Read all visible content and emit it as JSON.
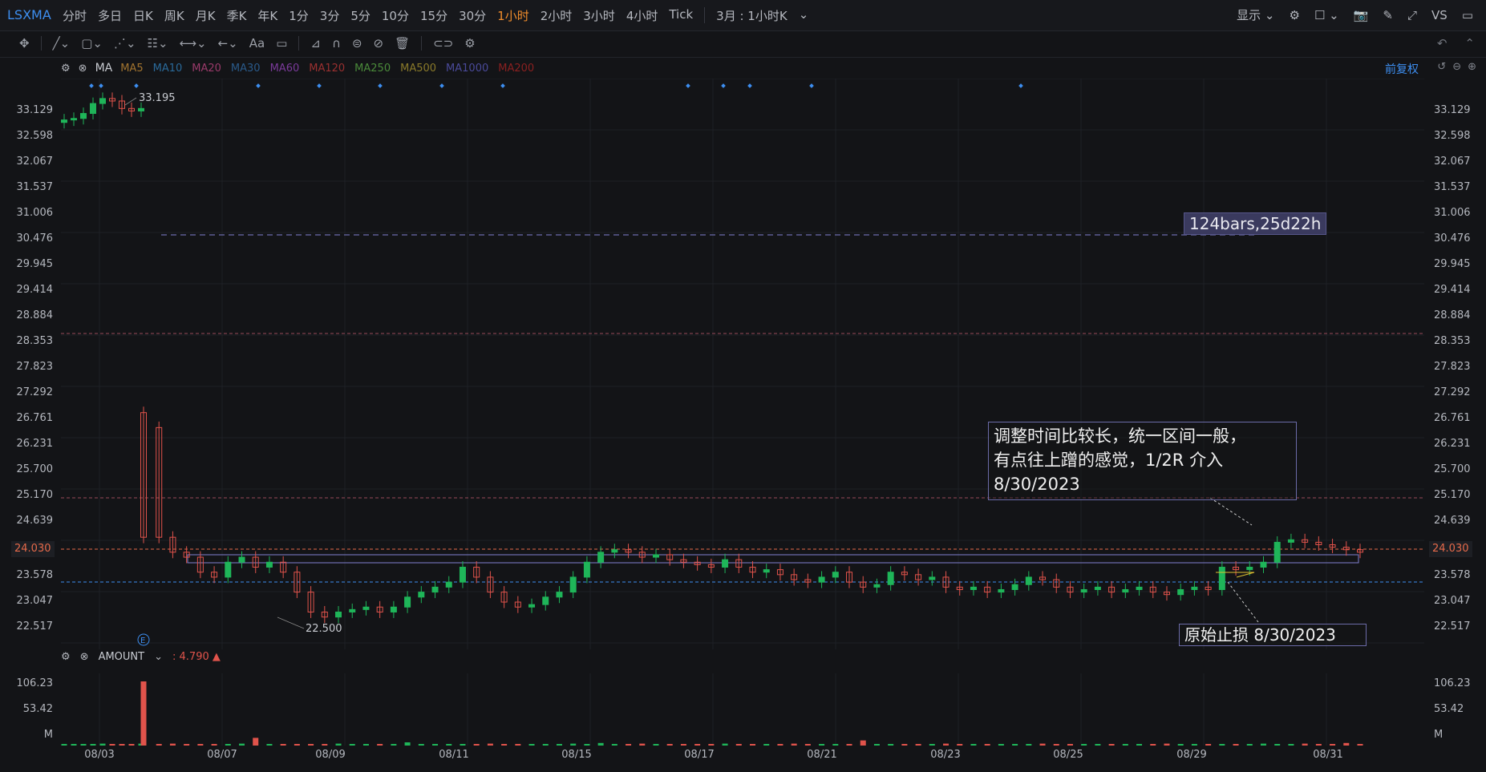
{
  "symbol": "LSXMA",
  "periods": [
    "分时",
    "多日",
    "日K",
    "周K",
    "月K",
    "季K",
    "年K",
    "1分",
    "3分",
    "5分",
    "10分",
    "15分",
    "30分",
    "1小时",
    "2小时",
    "3小时",
    "4小时",
    "Tick"
  ],
  "active_period": "1小时",
  "breadcrumb": "3月 : 1小时K",
  "display_label": "显示",
  "vs_label": "VS",
  "ma": {
    "label": "MA",
    "items": [
      {
        "name": "MA5",
        "color": "#a2742f"
      },
      {
        "name": "MA10",
        "color": "#2a6a9a"
      },
      {
        "name": "MA20",
        "color": "#9a3a6a"
      },
      {
        "name": "MA30",
        "color": "#2a5a8a"
      },
      {
        "name": "MA60",
        "color": "#7a3a9a"
      },
      {
        "name": "MA120",
        "color": "#9a3030"
      },
      {
        "name": "MA250",
        "color": "#4a8a3a"
      },
      {
        "name": "MA500",
        "color": "#8a7a2a"
      },
      {
        "name": "MA1000",
        "color": "#4a4a9a"
      },
      {
        "name": "MA200",
        "color": "#8a2020"
      }
    ]
  },
  "restore_label": "前复权",
  "price_labels": [
    "33.129",
    "32.598",
    "32.067",
    "31.537",
    "31.006",
    "30.476",
    "29.945",
    "29.414",
    "28.884",
    "28.353",
    "27.823",
    "27.292",
    "26.761",
    "26.231",
    "25.700",
    "25.170",
    "24.639",
    "24.030",
    "23.578",
    "23.047",
    "22.517"
  ],
  "current_price": "24.030",
  "high_label": "33.195",
  "low_label": "22.500",
  "event_marker": "E",
  "amount": {
    "label": "AMOUNT",
    "value": "4.790",
    "axis_labels": [
      "106.23",
      "53.42",
      "M"
    ]
  },
  "dates": [
    "08/03",
    "08/07",
    "08/09",
    "08/11",
    "08/15",
    "08/17",
    "08/21",
    "08/23",
    "08/25",
    "08/29",
    "08/31"
  ],
  "annotations": {
    "note_line1": "调整时间比较长，统一区间一般，",
    "note_line2": "有点往上蹭的感觉，1/2R 介入",
    "note_line3": "8/30/2023",
    "measure": "124bars,25d22h",
    "stop": "原始止损 8/30/2023"
  },
  "colors": {
    "up": "#1fb559",
    "down": "#e0534b",
    "accent": "#f08c2b",
    "link": "#3d8ef0"
  },
  "chart_data": {
    "type": "candlestick",
    "ylim": [
      22.1,
      33.5
    ],
    "series": [
      {
        "name": "price",
        "values": [
          32.67,
          32.7,
          32.8,
          33.0,
          33.1,
          33.05,
          32.9,
          32.85,
          32.9,
          26.5,
          24.3,
          24.0,
          23.9,
          23.6,
          23.5,
          23.8,
          23.9,
          23.7,
          23.8,
          23.6,
          23.2,
          22.8,
          22.7,
          22.8,
          22.85,
          22.9,
          22.8,
          22.9,
          23.1,
          23.2,
          23.3,
          23.4,
          23.7,
          23.5,
          23.2,
          23.0,
          22.9,
          22.95,
          23.1,
          23.2,
          23.5,
          23.8,
          24.0,
          24.05,
          24.0,
          23.9,
          23.95,
          23.85,
          23.8,
          23.75,
          23.7,
          23.85,
          23.7,
          23.6,
          23.65,
          23.55,
          23.45,
          23.4,
          23.5,
          23.6,
          23.4,
          23.3,
          23.35,
          23.6,
          23.55,
          23.45,
          23.5,
          23.3,
          23.25,
          23.3,
          23.2,
          23.25,
          23.35,
          23.5,
          23.45,
          23.3,
          23.2,
          23.25,
          23.3,
          23.2,
          23.25,
          23.3,
          23.2,
          23.15,
          23.25,
          23.3,
          23.25,
          23.7,
          23.65,
          23.7,
          23.8,
          24.2,
          24.25,
          24.2,
          24.15,
          24.1,
          24.05,
          24.0
        ]
      }
    ],
    "volume": [
      2,
      2,
      1,
      2,
      3,
      1,
      2,
      1,
      3,
      100,
      2,
      3,
      1,
      2,
      1,
      2,
      3,
      12,
      2,
      1,
      2,
      1,
      2,
      3,
      1,
      2,
      1,
      2,
      5,
      1,
      2,
      1,
      2,
      1,
      3,
      2,
      1,
      2,
      1,
      2,
      3,
      2,
      4,
      1,
      2,
      3,
      1,
      2,
      1,
      2,
      1,
      3,
      1,
      2,
      1,
      2,
      3,
      1,
      2,
      1,
      2,
      8,
      1,
      2,
      1,
      2,
      1,
      3,
      1,
      2,
      1,
      2,
      1,
      2,
      3,
      1,
      2,
      1,
      2,
      1,
      2,
      1,
      2,
      3,
      1,
      2,
      1,
      2,
      1,
      2,
      3,
      1,
      2,
      3,
      1,
      2,
      4,
      2
    ]
  }
}
